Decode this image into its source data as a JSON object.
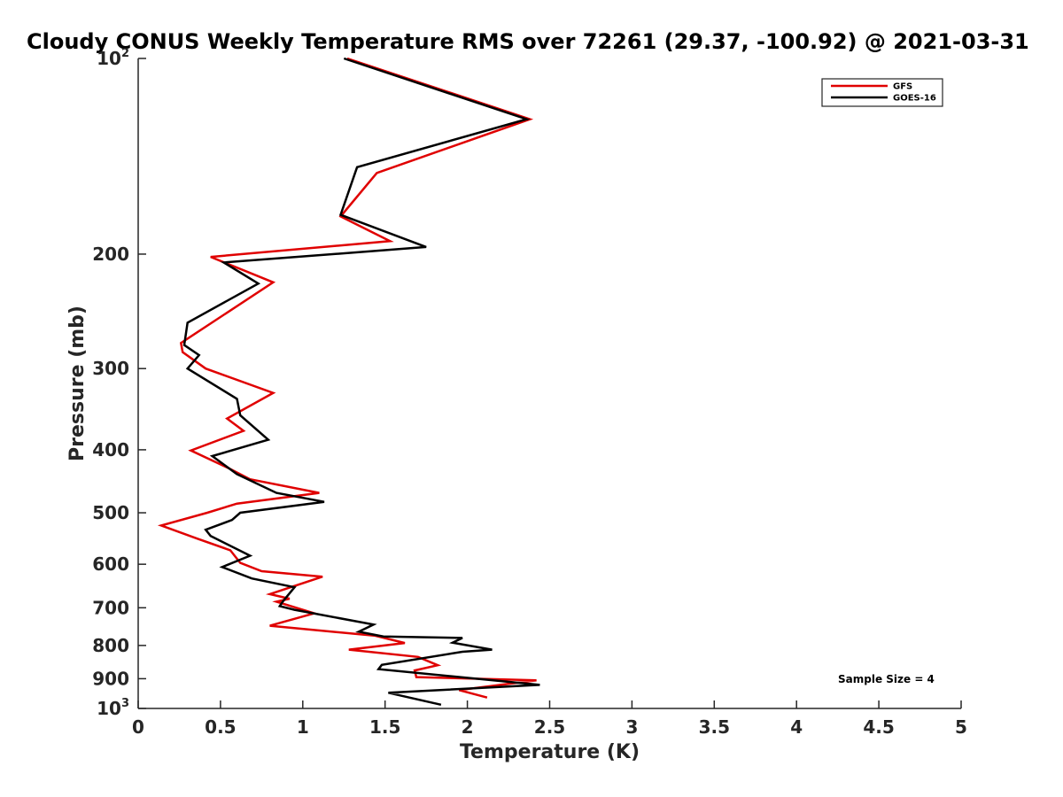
{
  "chart_data": {
    "type": "line",
    "title": "Cloudy CONUS Weekly Temperature RMS over 72261 (29.37, -100.92) @ 2021-03-31",
    "xlabel": "Temperature (K)",
    "ylabel": "Pressure (mb)",
    "xlim": [
      0,
      5
    ],
    "ylim": [
      1000,
      100
    ],
    "y_scale": "log",
    "x_ticks": [
      0,
      0.5,
      1,
      1.5,
      2,
      2.5,
      3,
      3.5,
      4,
      4.5,
      5
    ],
    "x_tick_labels": [
      "0",
      "0.5",
      "1",
      "1.5",
      "2",
      "2.5",
      "3",
      "3.5",
      "4",
      "4.5",
      "5"
    ],
    "y_ticks": [
      {
        "value": 100,
        "base": "10",
        "exp": "2"
      },
      {
        "value": 200,
        "label": "200"
      },
      {
        "value": 300,
        "label": "300"
      },
      {
        "value": 400,
        "label": "400"
      },
      {
        "value": 500,
        "label": "500"
      },
      {
        "value": 600,
        "label": "600"
      },
      {
        "value": 700,
        "label": "700"
      },
      {
        "value": 800,
        "label": "800"
      },
      {
        "value": 900,
        "label": "900"
      },
      {
        "value": 1000,
        "base": "10",
        "exp": "3"
      }
    ],
    "legend_position": "top-right",
    "annotation": "Sample Size = 4",
    "series": [
      {
        "name": "GFS",
        "color": "#e00000",
        "points": [
          [
            1.27,
            100
          ],
          [
            2.38,
            124
          ],
          [
            1.45,
            150
          ],
          [
            1.23,
            175
          ],
          [
            1.53,
            191
          ],
          [
            0.44,
            202
          ],
          [
            0.82,
            221
          ],
          [
            0.26,
            274
          ],
          [
            0.27,
            283
          ],
          [
            0.41,
            300
          ],
          [
            0.82,
            327
          ],
          [
            0.54,
            358
          ],
          [
            0.64,
            374
          ],
          [
            0.32,
            401
          ],
          [
            0.55,
            427
          ],
          [
            0.68,
            444
          ],
          [
            1.1,
            466
          ],
          [
            0.6,
            484
          ],
          [
            0.42,
            500
          ],
          [
            0.14,
            523
          ],
          [
            0.36,
            548
          ],
          [
            0.56,
            571
          ],
          [
            0.62,
            597
          ],
          [
            0.75,
            615
          ],
          [
            1.12,
            627
          ],
          [
            0.8,
            667
          ],
          [
            0.92,
            678
          ],
          [
            0.84,
            685
          ],
          [
            1.07,
            714
          ],
          [
            0.8,
            746
          ],
          [
            1.44,
            773
          ],
          [
            1.62,
            793
          ],
          [
            1.28,
            812
          ],
          [
            1.7,
            833
          ],
          [
            1.82,
            858
          ],
          [
            1.68,
            874
          ],
          [
            1.69,
            895
          ],
          [
            2.42,
            905
          ],
          [
            1.95,
            937
          ],
          [
            2.12,
            962
          ]
        ]
      },
      {
        "name": "GOES-16",
        "color": "#000000",
        "points": [
          [
            1.25,
            100
          ],
          [
            2.36,
            124
          ],
          [
            1.33,
            147
          ],
          [
            1.23,
            174
          ],
          [
            1.75,
            195
          ],
          [
            0.52,
            206
          ],
          [
            0.73,
            222
          ],
          [
            0.3,
            255
          ],
          [
            0.28,
            276
          ],
          [
            0.37,
            286
          ],
          [
            0.3,
            300
          ],
          [
            0.6,
            334
          ],
          [
            0.62,
            354
          ],
          [
            0.79,
            386
          ],
          [
            0.45,
            409
          ],
          [
            0.6,
            436
          ],
          [
            0.84,
            466
          ],
          [
            1.13,
            481
          ],
          [
            0.62,
            500
          ],
          [
            0.57,
            513
          ],
          [
            0.41,
            531
          ],
          [
            0.44,
            543
          ],
          [
            0.68,
            582
          ],
          [
            0.51,
            606
          ],
          [
            0.69,
            631
          ],
          [
            0.95,
            651
          ],
          [
            0.88,
            684
          ],
          [
            0.86,
            696
          ],
          [
            0.95,
            705
          ],
          [
            1.43,
            743
          ],
          [
            1.34,
            762
          ],
          [
            1.49,
            775
          ],
          [
            1.97,
            779
          ],
          [
            1.91,
            792
          ],
          [
            2.15,
            812
          ],
          [
            1.97,
            818
          ],
          [
            1.48,
            857
          ],
          [
            1.46,
            870
          ],
          [
            2.44,
            920
          ],
          [
            1.52,
            946
          ],
          [
            1.84,
            987
          ]
        ]
      }
    ]
  }
}
